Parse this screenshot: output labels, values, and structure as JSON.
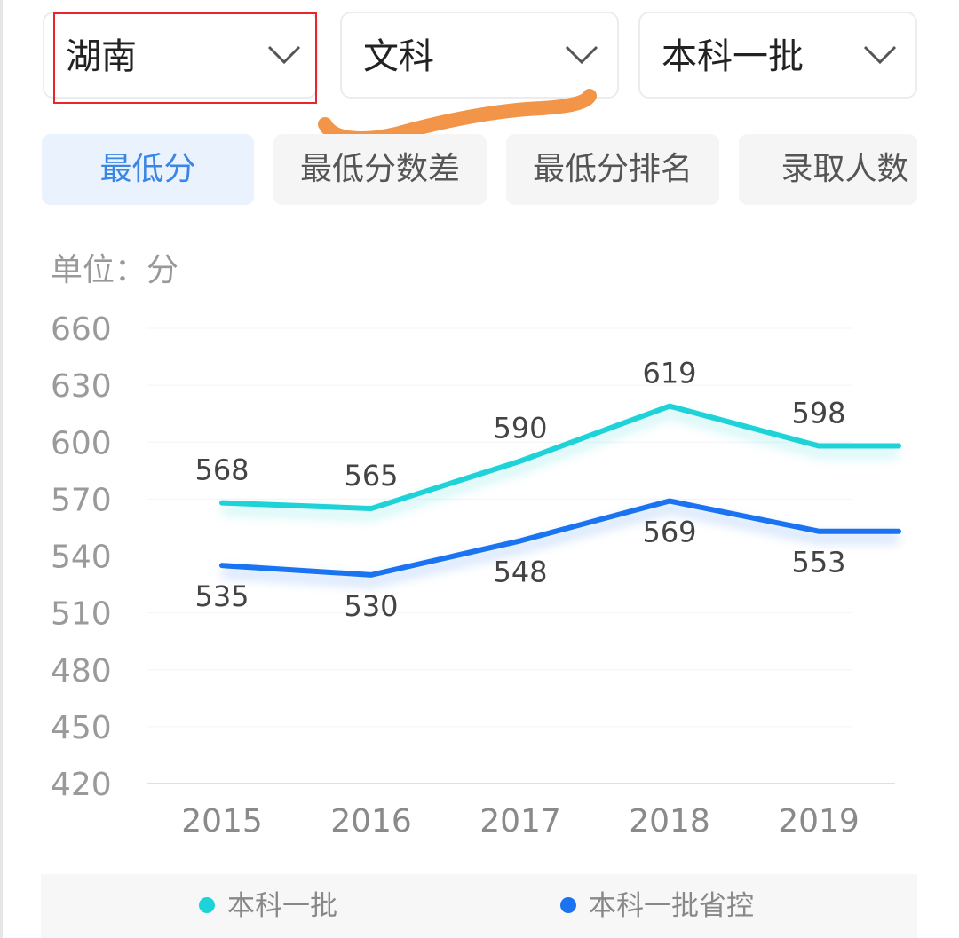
{
  "filters": {
    "province": "湖南",
    "subject": "文科",
    "batch": "本科一批"
  },
  "metric_tabs": [
    {
      "label": "最低分",
      "active": true
    },
    {
      "label": "最低分数差",
      "active": false
    },
    {
      "label": "最低分排名",
      "active": false
    },
    {
      "label": "录取人数",
      "active": false
    }
  ],
  "colors": {
    "series_1": "#1ed3d8",
    "series_2": "#1a73f0",
    "highlight": "#e8262b",
    "scribble": "#f39549"
  },
  "chart_data": {
    "type": "line",
    "unit_label": "单位：分",
    "categories": [
      "2015",
      "2016",
      "2017",
      "2018",
      "2019"
    ],
    "y_ticks": [
      660,
      630,
      600,
      570,
      540,
      510,
      480,
      450,
      420
    ],
    "ylim": [
      420,
      660
    ],
    "grid": true,
    "legend_position": "bottom",
    "series": [
      {
        "name": "本科一批",
        "values": [
          568,
          565,
          590,
          619,
          598
        ],
        "color": "#1ed3d8"
      },
      {
        "name": "本科一批省控",
        "values": [
          535,
          530,
          548,
          569,
          553
        ],
        "color": "#1a73f0"
      }
    ]
  }
}
